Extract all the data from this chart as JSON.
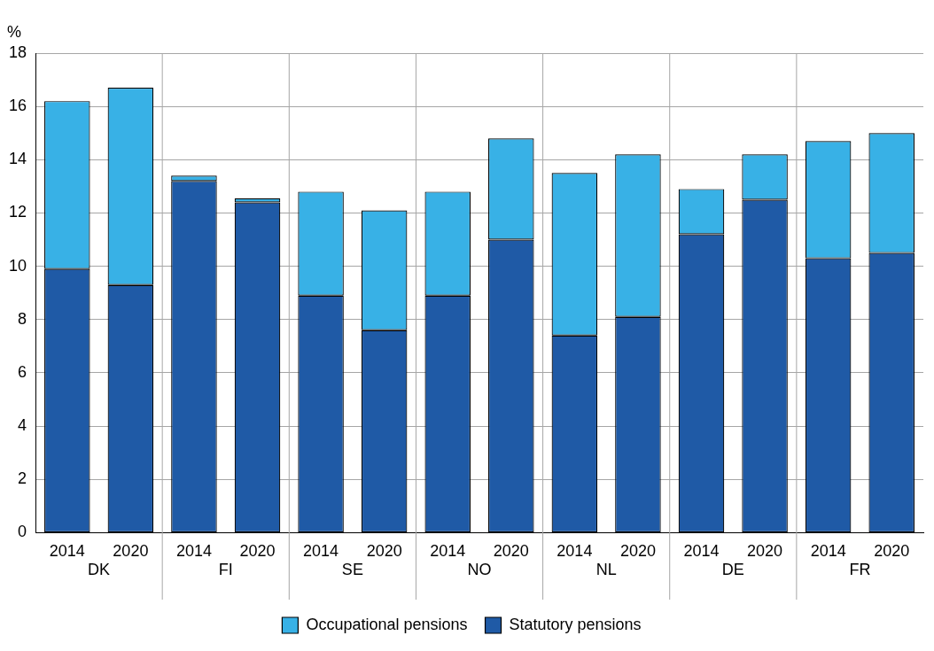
{
  "chart_data": {
    "type": "bar",
    "stacked": true,
    "ylabel": "%",
    "categories": [
      "2014",
      "2020",
      "2014",
      "2020",
      "2014",
      "2020",
      "2014",
      "2020",
      "2014",
      "2020",
      "2014",
      "2020",
      "2014",
      "2020"
    ],
    "annotations": [
      "DK",
      "FI",
      "SE",
      "NO",
      "NL",
      "DE",
      "FR"
    ],
    "series": [
      {
        "name": "Statutory pensions",
        "color": "#1f5aa6",
        "values": [
          9.9,
          9.3,
          13.2,
          12.4,
          8.9,
          7.6,
          8.9,
          11.0,
          7.4,
          8.1,
          11.2,
          12.5,
          10.3,
          10.5
        ]
      },
      {
        "name": "Occupational pensions",
        "color": "#38b1e6",
        "values": [
          6.3,
          7.4,
          0.2,
          0.15,
          3.9,
          4.5,
          3.9,
          3.8,
          6.1,
          6.1,
          1.7,
          1.7,
          4.4,
          4.5
        ]
      }
    ],
    "ylim": [
      0,
      18
    ],
    "yticks": [
      0,
      2,
      4,
      6,
      8,
      10,
      12,
      14,
      16,
      18
    ],
    "grid": true,
    "legend": "bottom"
  }
}
